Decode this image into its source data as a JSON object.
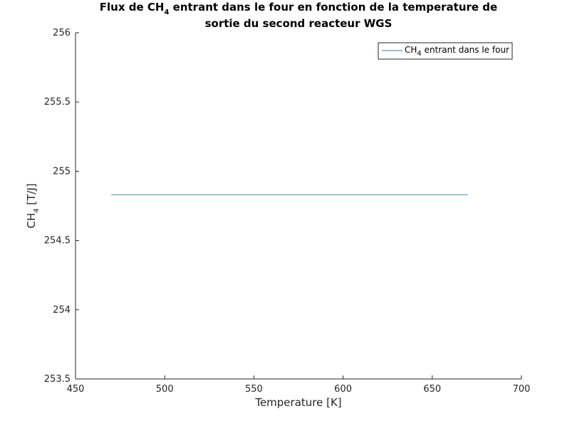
{
  "chart_data": {
    "type": "line",
    "title": {
      "line1_prefix": "Flux de CH",
      "line1_sub": "4",
      "line1_suffix": " entrant dans le four en fonction de la temperature de",
      "line2": "sortie du second reacteur WGS"
    },
    "xlabel": "Temperature [K]",
    "ylabel": {
      "prefix": "CH",
      "sub": "4",
      "suffix": " [T/J]"
    },
    "xlim": [
      450,
      700
    ],
    "ylim": [
      253.5,
      256
    ],
    "xticks": [
      450,
      500,
      550,
      600,
      650,
      700
    ],
    "xtick_labels": [
      "450",
      "500",
      "550",
      "600",
      "650",
      "700"
    ],
    "yticks": [
      253.5,
      254,
      254.5,
      255,
      255.5,
      256
    ],
    "ytick_labels": [
      "253.5",
      "254",
      "254.5",
      "255",
      "255.5",
      "256"
    ],
    "grid": false,
    "legend_position": "top-right",
    "series": [
      {
        "name": {
          "prefix": "CH",
          "sub": "4",
          "suffix": " entrant dans le four"
        },
        "color": "#5b9ec4",
        "x": [
          470,
          670
        ],
        "y": [
          254.83,
          254.83
        ]
      }
    ]
  }
}
